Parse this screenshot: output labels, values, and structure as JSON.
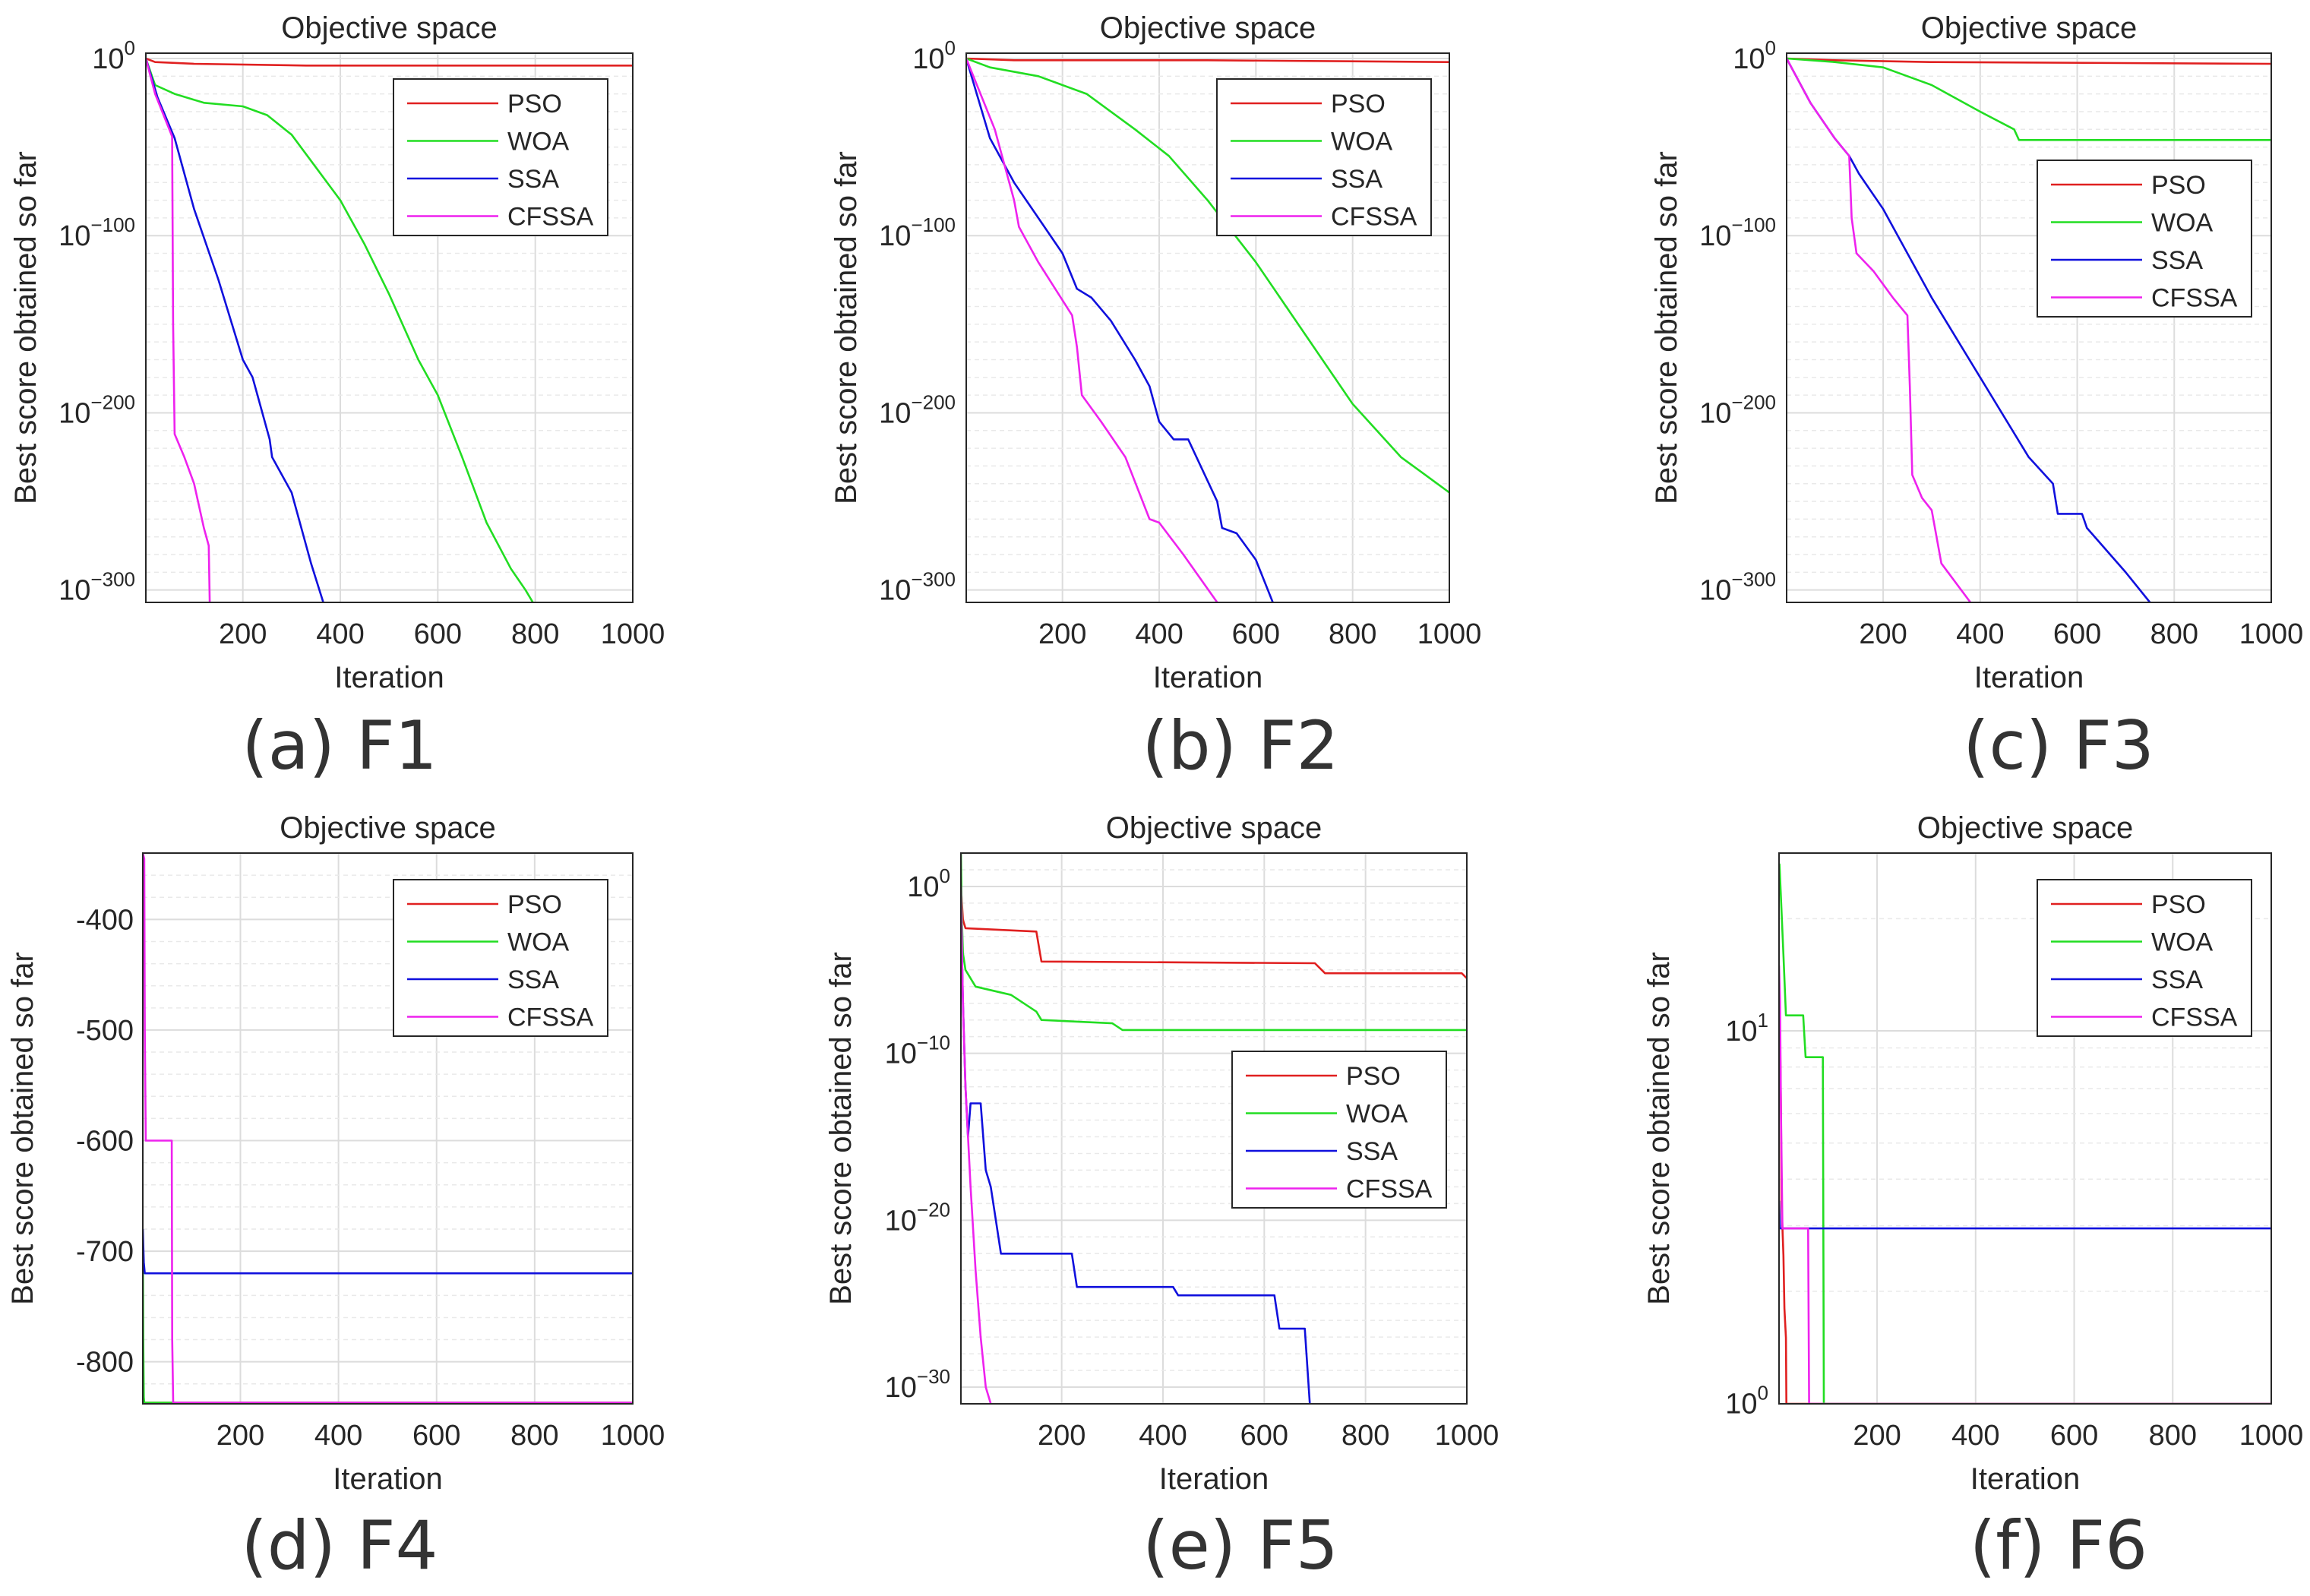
{
  "colors": {
    "PSO": "#e02020",
    "WOA": "#22dd22",
    "SSA": "#1010dd",
    "CFSSA": "#ee22ee"
  },
  "chart_data": [
    {
      "id": "F1",
      "caption": "(a) F1",
      "type": "line",
      "title": "Objective space",
      "xlabel": "Iteration",
      "ylabel": "Best score obtained so far",
      "yscale": "log",
      "xlim": [
        1,
        1000
      ],
      "ylim_exp": [
        -307,
        3
      ],
      "xticks": [
        "200",
        "400",
        "600",
        "800",
        "1000"
      ],
      "ytick_exponents": [
        0,
        -100,
        -200,
        -300
      ],
      "grid": "on",
      "legend": "top-right",
      "series": [
        {
          "name": "PSO",
          "color_key": "PSO",
          "x": [
            1,
            20,
            100,
            330,
            1000
          ],
          "y_exp": [
            0,
            -2,
            -3,
            -4,
            -4
          ]
        },
        {
          "name": "WOA",
          "color_key": "WOA",
          "x": [
            1,
            20,
            60,
            120,
            200,
            250,
            300,
            400,
            450,
            500,
            560,
            600,
            650,
            700,
            750,
            780,
            795
          ],
          "y_exp": [
            0,
            -15,
            -20,
            -25,
            -27,
            -32,
            -43,
            -80,
            -105,
            -133,
            -170,
            -190,
            -225,
            -262,
            -288,
            -300,
            -307
          ]
        },
        {
          "name": "SSA",
          "color_key": "SSA",
          "x": [
            1,
            25,
            60,
            100,
            150,
            200,
            220,
            255,
            260,
            300,
            340,
            365
          ],
          "y_exp": [
            0,
            -22,
            -45,
            -85,
            -125,
            -170,
            -180,
            -215,
            -225,
            -245,
            -285,
            -307
          ]
        },
        {
          "name": "CFSSA",
          "color_key": "CFSSA",
          "x": [
            1,
            20,
            55,
            57,
            60,
            80,
            100,
            120,
            130,
            132
          ],
          "y_exp": [
            0,
            -20,
            -44,
            -150,
            -212,
            -225,
            -240,
            -265,
            -275,
            -307
          ]
        }
      ]
    },
    {
      "id": "F2",
      "caption": "(b) F2",
      "type": "line",
      "title": "Objective space",
      "xlabel": "Iteration",
      "ylabel": "Best score obtained so far",
      "yscale": "log",
      "xlim": [
        1,
        1000
      ],
      "ylim_exp": [
        -307,
        3
      ],
      "xticks": [
        "200",
        "400",
        "600",
        "800",
        "1000"
      ],
      "ytick_exponents": [
        0,
        -100,
        -200,
        -300
      ],
      "grid": "on",
      "legend": "top-right",
      "series": [
        {
          "name": "PSO",
          "color_key": "PSO",
          "x": [
            1,
            100,
            500,
            1000
          ],
          "y_exp": [
            0,
            -1,
            -1,
            -2
          ]
        },
        {
          "name": "WOA",
          "color_key": "WOA",
          "x": [
            1,
            50,
            150,
            250,
            350,
            420,
            500,
            600,
            700,
            800,
            850,
            900,
            950,
            1000
          ],
          "y_exp": [
            0,
            -5,
            -10,
            -20,
            -40,
            -55,
            -80,
            -115,
            -155,
            -195,
            -210,
            -225,
            -235,
            -245
          ]
        },
        {
          "name": "SSA",
          "color_key": "SSA",
          "x": [
            1,
            50,
            100,
            150,
            200,
            230,
            260,
            300,
            350,
            380,
            400,
            430,
            460,
            520,
            530,
            560,
            600,
            635
          ],
          "y_exp": [
            0,
            -45,
            -70,
            -90,
            -110,
            -130,
            -135,
            -148,
            -170,
            -185,
            -205,
            -215,
            -215,
            -250,
            -265,
            -268,
            -283,
            -307
          ]
        },
        {
          "name": "CFSSA",
          "color_key": "CFSSA",
          "x": [
            1,
            60,
            100,
            110,
            150,
            220,
            230,
            240,
            280,
            330,
            380,
            400,
            450,
            520
          ],
          "y_exp": [
            0,
            -40,
            -80,
            -95,
            -115,
            -145,
            -163,
            -190,
            -205,
            -225,
            -260,
            -262,
            -280,
            -307
          ]
        }
      ]
    },
    {
      "id": "F3",
      "caption": "(c) F3",
      "type": "line",
      "title": "Objective space",
      "xlabel": "Iteration",
      "ylabel": "Best score obtained so far",
      "yscale": "log",
      "xlim": [
        1,
        1000
      ],
      "ylim_exp": [
        -307,
        3
      ],
      "xticks": [
        "200",
        "400",
        "600",
        "800",
        "1000"
      ],
      "ytick_exponents": [
        0,
        -100,
        -200,
        -300
      ],
      "grid": "on",
      "legend": "right",
      "series": [
        {
          "name": "PSO",
          "color_key": "PSO",
          "x": [
            1,
            100,
            300,
            1000
          ],
          "y_exp": [
            0,
            -1,
            -2,
            -3
          ]
        },
        {
          "name": "WOA",
          "color_key": "WOA",
          "x": [
            1,
            100,
            200,
            300,
            400,
            470,
            480,
            1000
          ],
          "y_exp": [
            0,
            -2,
            -5,
            -15,
            -30,
            -40,
            -46,
            -46
          ]
        },
        {
          "name": "SSA",
          "color_key": "SSA",
          "x": [
            1,
            50,
            100,
            130,
            150,
            200,
            300,
            400,
            500,
            550,
            560,
            610,
            620,
            700,
            750
          ],
          "y_exp": [
            0,
            -25,
            -45,
            -55,
            -65,
            -85,
            -135,
            -180,
            -225,
            -240,
            -257,
            -257,
            -265,
            -290,
            -307
          ]
        },
        {
          "name": "CFSSA",
          "color_key": "CFSSA",
          "x": [
            1,
            50,
            100,
            130,
            135,
            145,
            180,
            220,
            250,
            255,
            260,
            280,
            300,
            320,
            380
          ],
          "y_exp": [
            0,
            -25,
            -45,
            -55,
            -90,
            -110,
            -120,
            -135,
            -145,
            -185,
            -235,
            -248,
            -255,
            -285,
            -307
          ]
        }
      ]
    },
    {
      "id": "F4",
      "caption": "(d) F4",
      "type": "line",
      "title": "Objective space",
      "xlabel": "Iteration",
      "ylabel": "Best score obtained so far",
      "yscale": "linear",
      "xlim": [
        1,
        1000
      ],
      "ylim": [
        -838,
        -340
      ],
      "xticks": [
        "200",
        "400",
        "600",
        "800",
        "1000"
      ],
      "yticks": [
        "-400",
        "-500",
        "-600",
        "-700",
        "-800"
      ],
      "grid": "on",
      "legend": "top-right",
      "series": [
        {
          "name": "PSO",
          "color_key": "PSO",
          "x": [
            1,
            1000
          ],
          "y": [
            -837,
            -837
          ]
        },
        {
          "name": "WOA",
          "color_key": "WOA",
          "x": [
            1,
            2,
            3,
            4,
            1000
          ],
          "y": [
            -690,
            -780,
            -832,
            -837,
            -837
          ]
        },
        {
          "name": "SSA",
          "color_key": "SSA",
          "x": [
            1,
            3,
            5,
            1000
          ],
          "y": [
            -680,
            -710,
            -720,
            -720
          ]
        },
        {
          "name": "CFSSA",
          "color_key": "CFSSA",
          "x": [
            1,
            4,
            5,
            7,
            60,
            61,
            63,
            1000
          ],
          "y": [
            -340,
            -345,
            -500,
            -600,
            -600,
            -780,
            -837,
            -837
          ]
        }
      ]
    },
    {
      "id": "F5",
      "caption": "(e) F5",
      "type": "line",
      "title": "Objective space",
      "xlabel": "Iteration",
      "ylabel": "Best score obtained so far",
      "yscale": "log",
      "xlim": [
        1,
        1000
      ],
      "ylim_exp": [
        -31,
        2
      ],
      "xticks": [
        "200",
        "400",
        "600",
        "800",
        "1000"
      ],
      "ytick_exponents": [
        0,
        -10,
        -20,
        -30
      ],
      "grid": "on",
      "legend": "right",
      "series": [
        {
          "name": "PSO",
          "color_key": "PSO",
          "x": [
            1,
            5,
            10,
            150,
            160,
            700,
            720,
            990,
            1000
          ],
          "y_exp": [
            0,
            -2,
            -2.5,
            -2.7,
            -4.5,
            -4.6,
            -5.2,
            -5.2,
            -5.5
          ]
        },
        {
          "name": "WOA",
          "color_key": "WOA",
          "x": [
            1,
            3,
            5,
            10,
            30,
            100,
            150,
            160,
            300,
            320,
            1000
          ],
          "y_exp": [
            2,
            -2,
            -4,
            -5,
            -6,
            -6.5,
            -7.5,
            -8,
            -8.2,
            -8.6,
            -8.6
          ]
        },
        {
          "name": "SSA",
          "color_key": "SSA",
          "x": [
            1,
            5,
            10,
            15,
            20,
            40,
            50,
            60,
            70,
            80,
            220,
            230,
            420,
            430,
            620,
            630,
            680,
            690
          ],
          "y_exp": [
            -1,
            -7,
            -12,
            -15,
            -13,
            -13,
            -17,
            -18,
            -20,
            -22,
            -22,
            -24,
            -24,
            -24.5,
            -24.5,
            -26.5,
            -26.5,
            -31
          ]
        },
        {
          "name": "CFSSA",
          "color_key": "CFSSA",
          "x": [
            1,
            3,
            6,
            10,
            20,
            30,
            40,
            50,
            60
          ],
          "y_exp": [
            0,
            -4,
            -8,
            -12,
            -18,
            -23,
            -27,
            -30,
            -31
          ]
        }
      ]
    },
    {
      "id": "F6",
      "caption": "(f) F6",
      "type": "line",
      "title": "Objective space",
      "xlabel": "Iteration",
      "ylabel": "Best score obtained so far",
      "yscale": "log",
      "xlim": [
        1,
        1000
      ],
      "ylim": [
        0.998,
        30
      ],
      "xticks": [
        "200",
        "400",
        "600",
        "800",
        "1000"
      ],
      "ytick_exponents": [
        0,
        1
      ],
      "grid": "on",
      "legend": "top-right",
      "series": [
        {
          "name": "PSO",
          "color_key": "PSO",
          "x": [
            1,
            3,
            5,
            6,
            10,
            12,
            15,
            16,
            1000
          ],
          "y": [
            13,
            10,
            6,
            3.5,
            2.5,
            1.8,
            1.5,
            0.998,
            0.998
          ]
        },
        {
          "name": "WOA",
          "color_key": "WOA",
          "x": [
            1,
            2,
            10,
            15,
            50,
            55,
            90,
            92,
            1000
          ],
          "y": [
            25,
            28,
            16,
            11,
            11,
            8.5,
            8.5,
            0.998,
            0.998
          ]
        },
        {
          "name": "SSA",
          "color_key": "SSA",
          "x": [
            1,
            3,
            1000
          ],
          "y": [
            3.5,
            2.95,
            2.95
          ]
        },
        {
          "name": "CFSSA",
          "color_key": "CFSSA",
          "x": [
            1,
            3,
            5,
            8,
            60,
            62,
            1000
          ],
          "y": [
            15,
            12,
            6,
            2.95,
            2.95,
            0.998,
            0.998
          ]
        }
      ]
    }
  ]
}
